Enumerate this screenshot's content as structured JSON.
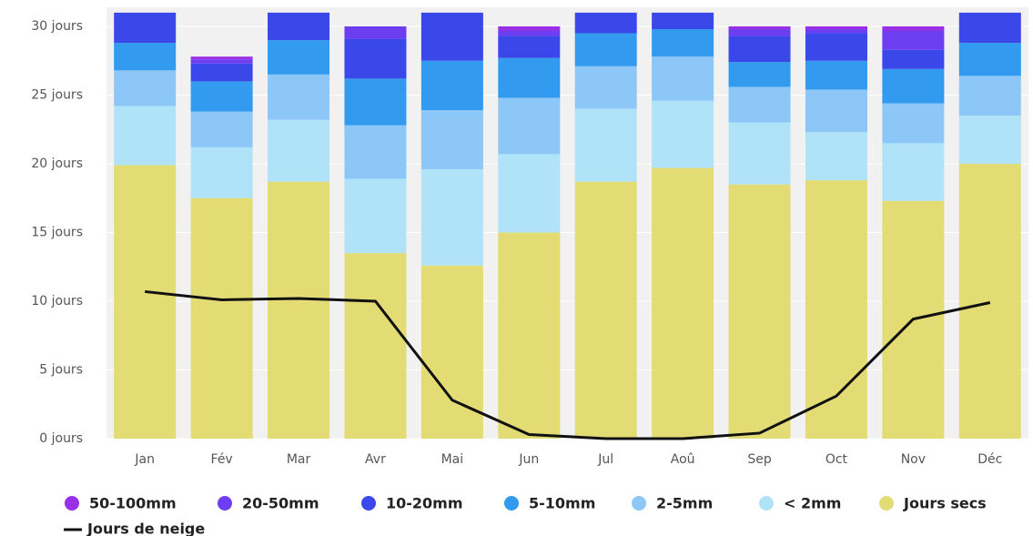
{
  "chart_data": {
    "type": "bar",
    "categories": [
      "Jan",
      "Fév",
      "Mar",
      "Avr",
      "Mai",
      "Jun",
      "Jul",
      "Aoû",
      "Sep",
      "Oct",
      "Nov",
      "Déc"
    ],
    "series": [
      {
        "name": "50-100mm",
        "color": "#9a2fe6",
        "values": [
          0,
          0.2,
          0,
          0,
          0,
          0.3,
          0,
          0,
          0.2,
          0.2,
          0.3,
          0
        ]
      },
      {
        "name": "20-50mm",
        "color": "#6d3ef0",
        "values": [
          0,
          0.3,
          0,
          0.9,
          0,
          0.4,
          0,
          0,
          0.5,
          0.3,
          1.4,
          0
        ]
      },
      {
        "name": "10-20mm",
        "color": "#3a48ea",
        "values": [
          2.2,
          1.3,
          2.0,
          2.9,
          3.5,
          1.6,
          1.5,
          1.2,
          1.9,
          2.0,
          1.4,
          2.2
        ]
      },
      {
        "name": "5-10mm",
        "color": "#329bef",
        "values": [
          2.0,
          2.2,
          2.5,
          3.4,
          3.6,
          2.9,
          2.4,
          2.0,
          1.8,
          2.1,
          2.5,
          2.4
        ]
      },
      {
        "name": "2-5mm",
        "color": "#8cc7f8",
        "values": [
          2.6,
          2.6,
          3.3,
          3.9,
          4.3,
          4.1,
          3.1,
          3.2,
          2.6,
          3.1,
          2.9,
          2.9
        ]
      },
      {
        "name": "< 2mm",
        "color": "#b1e3f8",
        "values": [
          4.3,
          3.7,
          4.5,
          5.4,
          7.0,
          5.7,
          5.3,
          4.9,
          4.5,
          3.5,
          4.2,
          3.5
        ]
      },
      {
        "name": "Jours secs",
        "color": "#e3dc74",
        "values": [
          19.9,
          17.5,
          18.7,
          13.5,
          12.6,
          15.0,
          18.7,
          19.7,
          18.5,
          18.8,
          17.3,
          20.0
        ]
      },
      {
        "name": "Jours de neige",
        "type": "line",
        "color": "#111111",
        "values": [
          10.7,
          10.1,
          10.2,
          10.0,
          2.8,
          0.3,
          0.0,
          0.0,
          0.4,
          3.1,
          8.7,
          9.9
        ]
      }
    ],
    "ylim": [
      0,
      30
    ],
    "yticks": [
      {
        "value": 0,
        "label": "0 jours"
      },
      {
        "value": 5,
        "label": "5 jours"
      },
      {
        "value": 10,
        "label": "10 jours"
      },
      {
        "value": 15,
        "label": "15 jours"
      },
      {
        "value": 20,
        "label": "20 jours"
      },
      {
        "value": 25,
        "label": "25 jours"
      },
      {
        "value": 30,
        "label": "30 jours"
      }
    ],
    "grid": true
  }
}
